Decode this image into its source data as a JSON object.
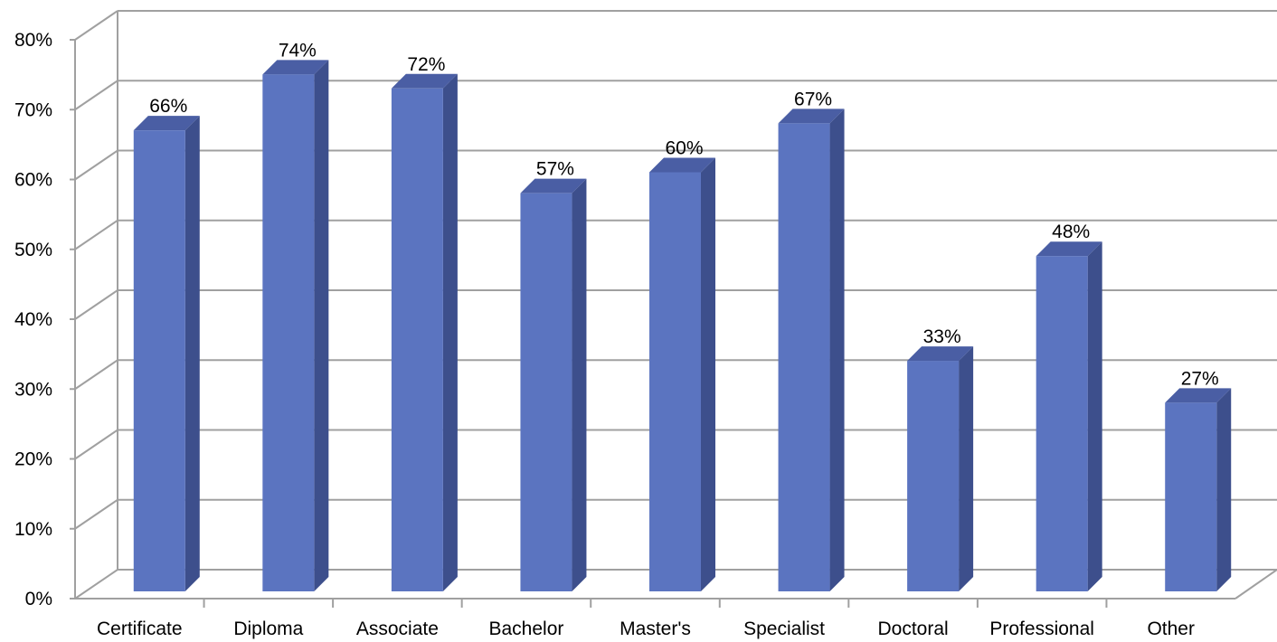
{
  "chart_data": {
    "type": "bar",
    "style": "3d-column",
    "categories": [
      "Certificate",
      "Diploma",
      "Associate",
      "Bachelor",
      "Master's",
      "Specialist",
      "Doctoral",
      "Professional",
      "Other"
    ],
    "values": [
      66,
      74,
      72,
      57,
      60,
      67,
      33,
      48,
      27
    ],
    "data_labels": [
      "66%",
      "74%",
      "72%",
      "57%",
      "60%",
      "67%",
      "33%",
      "48%",
      "27%"
    ],
    "y_ticks": [
      "0%",
      "10%",
      "20%",
      "30%",
      "40%",
      "50%",
      "60%",
      "70%",
      "80%"
    ],
    "ylim": [
      0,
      80
    ],
    "title": "",
    "xlabel": "",
    "ylabel": "",
    "grid": true,
    "legend": "none",
    "colors": {
      "bar_front": "#5b74c0",
      "bar_side": "#3d4f8c",
      "bar_top": "#4a5ea4",
      "grid": "#a0a0a0",
      "background": "#ffffff"
    }
  }
}
